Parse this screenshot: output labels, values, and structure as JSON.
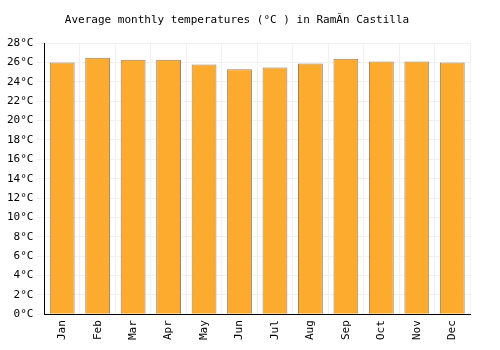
{
  "chart_data": {
    "type": "bar",
    "title": "Average monthly temperatures (°C ) in RamÃ­n Castilla",
    "categories": [
      "Jan",
      "Feb",
      "Mar",
      "Apr",
      "May",
      "Jun",
      "Jul",
      "Aug",
      "Sep",
      "Oct",
      "Nov",
      "Dec"
    ],
    "values": [
      26.0,
      26.5,
      26.3,
      26.3,
      25.8,
      25.3,
      25.5,
      25.9,
      26.4,
      26.1,
      26.1,
      26.0
    ],
    "color": "#fdab2e",
    "ylim": [
      0,
      28
    ],
    "yticks": [
      {
        "value": 0,
        "label": "0°C"
      },
      {
        "value": 2,
        "label": "2°C"
      },
      {
        "value": 4,
        "label": "4°C"
      },
      {
        "value": 6,
        "label": "6°C"
      },
      {
        "value": 8,
        "label": "8°C"
      },
      {
        "value": 10,
        "label": "10°C"
      },
      {
        "value": 12,
        "label": "12°C"
      },
      {
        "value": 14,
        "label": "14°C"
      },
      {
        "value": 16,
        "label": "16°C"
      },
      {
        "value": 18,
        "label": "18°C"
      },
      {
        "value": 20,
        "label": "20°C"
      },
      {
        "value": 22,
        "label": "22°C"
      },
      {
        "value": 24,
        "label": "24°C"
      },
      {
        "value": 26,
        "label": "26°C"
      },
      {
        "value": 28,
        "label": "28°C"
      }
    ],
    "grid": true
  }
}
